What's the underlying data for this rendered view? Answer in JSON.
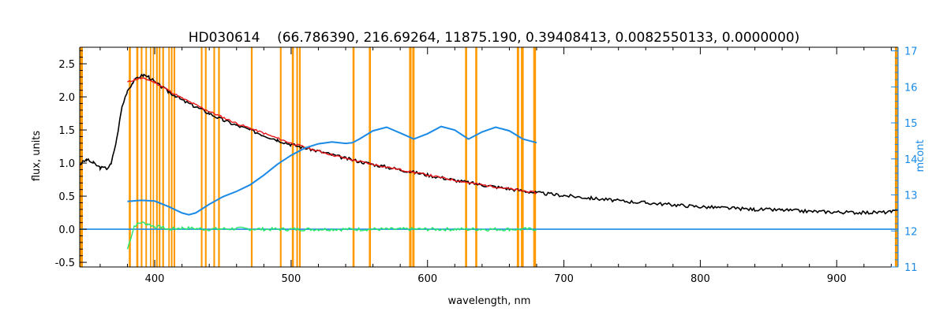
{
  "chart_data": {
    "type": "line",
    "title": "HD030614    (66.786390, 216.69264, 11875.190, 0.39408413, 0.0082550133, 0.0000000)",
    "xlabel": "wavelength, nm",
    "ylabel": "flux, units",
    "y2label": "mcont",
    "xlim": [
      345,
      945
    ],
    "ylim": [
      -0.57,
      2.75
    ],
    "y2lim": [
      11,
      17.1
    ],
    "xticks": [
      400,
      500,
      600,
      700,
      800,
      900
    ],
    "yticks": [
      -0.5,
      0.0,
      0.5,
      1.0,
      1.5,
      2.0,
      2.5
    ],
    "y2ticks": [
      11,
      12,
      13,
      14,
      15,
      16,
      17
    ],
    "colors": {
      "flux": "#000000",
      "model": "#e8161b",
      "residual": "#27e86a",
      "mcont": "#1a8ae6",
      "mask": "#ff9900"
    },
    "mask_bands": [
      [
        381.0,
        382.5
      ],
      [
        386.5,
        388.0
      ],
      [
        389.8,
        391.0
      ],
      [
        393.2,
        394.3
      ],
      [
        396.5,
        397.5
      ],
      [
        398.5,
        399.5
      ],
      [
        401.0,
        402.2
      ],
      [
        403.0,
        404.2
      ],
      [
        405.5,
        406.8
      ],
      [
        410.0,
        411.0
      ],
      [
        411.8,
        413.0
      ],
      [
        413.8,
        415.0
      ],
      [
        433.8,
        435.0
      ],
      [
        436.8,
        438.0
      ],
      [
        443.0,
        444.2
      ],
      [
        446.5,
        447.8
      ],
      [
        470.5,
        471.8
      ],
      [
        491.8,
        493.0
      ],
      [
        500.5,
        502.0
      ],
      [
        503.8,
        505.0
      ],
      [
        505.8,
        507.0
      ],
      [
        545.0,
        546.5
      ],
      [
        557.0,
        558.5
      ],
      [
        586.5,
        588.3
      ],
      [
        588.8,
        590.5
      ],
      [
        627.5,
        629.0
      ],
      [
        635.0,
        636.5
      ],
      [
        665.5,
        667.2
      ],
      [
        668.5,
        670.5
      ],
      [
        677.5,
        679.5
      ]
    ],
    "series": [
      {
        "name": "flux",
        "x": [
          345,
          350,
          355,
          360,
          365,
          368,
          372,
          376,
          380,
          384,
          388,
          392,
          396,
          400,
          405,
          410,
          415,
          420,
          430,
          440,
          450,
          460,
          470,
          480,
          490,
          500,
          520,
          540,
          560,
          580,
          600,
          620,
          640,
          660,
          680,
          700,
          720,
          740,
          760,
          780,
          800,
          820,
          840,
          860,
          880,
          900,
          920,
          940,
          945
        ],
        "y": [
          0.98,
          1.05,
          1.0,
          0.93,
          0.92,
          0.98,
          1.35,
          1.85,
          2.1,
          2.22,
          2.3,
          2.33,
          2.3,
          2.22,
          2.15,
          2.08,
          2.02,
          1.95,
          1.85,
          1.75,
          1.65,
          1.57,
          1.5,
          1.42,
          1.35,
          1.28,
          1.18,
          1.07,
          0.98,
          0.9,
          0.82,
          0.74,
          0.67,
          0.61,
          0.55,
          0.51,
          0.47,
          0.43,
          0.4,
          0.37,
          0.34,
          0.32,
          0.3,
          0.29,
          0.27,
          0.26,
          0.25,
          0.26,
          0.28
        ]
      },
      {
        "name": "model",
        "x": [
          380,
          385,
          390,
          395,
          400,
          410,
          420,
          440,
          460,
          480,
          500,
          520,
          540,
          560,
          580,
          600,
          620,
          640,
          660,
          680
        ],
        "y": [
          2.22,
          2.26,
          2.28,
          2.26,
          2.22,
          2.1,
          1.98,
          1.78,
          1.6,
          1.45,
          1.3,
          1.18,
          1.07,
          0.98,
          0.9,
          0.82,
          0.74,
          0.67,
          0.61,
          0.55
        ]
      },
      {
        "name": "residual",
        "x": [
          380,
          385,
          390,
          395,
          400,
          405,
          410,
          420,
          440,
          460,
          480,
          500,
          520,
          540,
          560,
          580,
          600,
          620,
          640,
          660,
          680
        ],
        "y": [
          -0.3,
          0.05,
          0.1,
          0.08,
          0.04,
          0.03,
          0.0,
          0.02,
          0.0,
          0.01,
          0.0,
          0.0,
          0.0,
          0.0,
          0.0,
          0.0,
          0.0,
          0.0,
          0.0,
          0.0,
          0.0
        ]
      },
      {
        "name": "zero-line",
        "x": [
          345,
          945
        ],
        "y": [
          0.0,
          0.0
        ]
      },
      {
        "name": "mcont",
        "axis": "right",
        "x": [
          380,
          390,
          400,
          410,
          420,
          425,
          430,
          440,
          450,
          460,
          470,
          480,
          490,
          500,
          510,
          520,
          530,
          540,
          545,
          550,
          560,
          570,
          580,
          590,
          600,
          610,
          620,
          630,
          640,
          650,
          660,
          670,
          680
        ],
        "y": [
          12.82,
          12.85,
          12.83,
          12.68,
          12.5,
          12.45,
          12.5,
          12.74,
          12.95,
          13.1,
          13.28,
          13.55,
          13.85,
          14.1,
          14.3,
          14.42,
          14.47,
          14.43,
          14.45,
          14.55,
          14.78,
          14.88,
          14.72,
          14.55,
          14.7,
          14.9,
          14.8,
          14.55,
          14.75,
          14.88,
          14.78,
          14.55,
          14.45
        ]
      }
    ]
  }
}
